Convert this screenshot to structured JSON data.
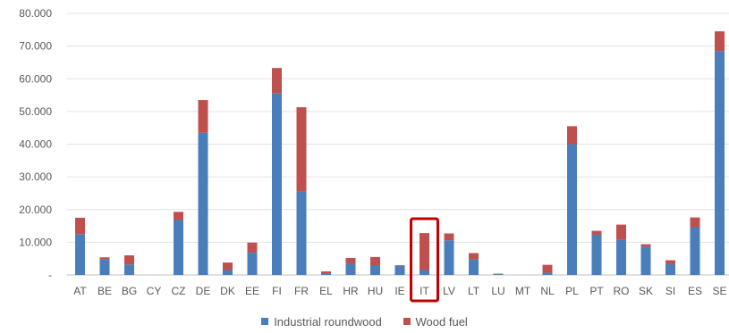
{
  "chart_data": {
    "type": "bar",
    "stacked": true,
    "categories": [
      "AT",
      "BE",
      "BG",
      "CY",
      "CZ",
      "DE",
      "DK",
      "EE",
      "FI",
      "FR",
      "EL",
      "HR",
      "HU",
      "IE",
      "IT",
      "LV",
      "LT",
      "LU",
      "MT",
      "NL",
      "PL",
      "PT",
      "RO",
      "SK",
      "SI",
      "ES",
      "SE"
    ],
    "series": [
      {
        "name": "Industrial roundwood",
        "color": "#4a7ebb",
        "values": [
          12500,
          4800,
          3200,
          0,
          16800,
          43500,
          1500,
          6800,
          55500,
          25500,
          300,
          3400,
          3000,
          2800,
          1500,
          10600,
          4800,
          250,
          0,
          700,
          40000,
          12300,
          10700,
          8700,
          3300,
          14600,
          68500
        ]
      },
      {
        "name": "Wood fuel",
        "color": "#c0504d",
        "values": [
          5000,
          600,
          2800,
          0,
          2500,
          10000,
          2300,
          3100,
          7800,
          25800,
          800,
          1800,
          2500,
          200,
          11300,
          2100,
          1900,
          150,
          0,
          2400,
          5500,
          1200,
          4700,
          700,
          1200,
          3000,
          6000
        ]
      }
    ],
    "y_ticks": [
      "-",
      "10.000",
      "20.000",
      "30.000",
      "40.000",
      "50.000",
      "60.000",
      "70.000",
      "80.000"
    ],
    "ylim": [
      0,
      80000
    ],
    "grid": true,
    "legend_position": "bottom",
    "highlight_category": "IT",
    "highlight_color": "#c00000"
  }
}
